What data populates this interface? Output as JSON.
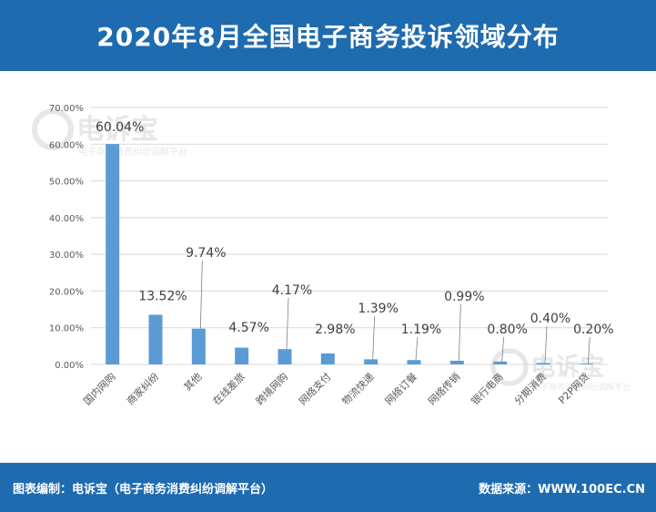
{
  "header": {
    "title": "2020年8月全国电子商务投诉领域分布"
  },
  "footer": {
    "left": "图表编制：电诉宝（电子商务消费纠纷调解平台）",
    "right": "数据来源：WWW.100EC.CN"
  },
  "watermark": {
    "name": "电诉宝",
    "subtitle": "电子商务消费纠纷调解平台"
  },
  "colors": {
    "header_bg": "#1e6bb0",
    "bar": "#5b9bd5",
    "grid": "#d9d9d9",
    "axis_text": "#595959",
    "label_text": "#404040"
  },
  "chart_data": {
    "type": "bar",
    "title": "",
    "xlabel": "",
    "ylabel": "",
    "ylim": [
      0,
      70
    ],
    "y_ticks": [
      "0.00%",
      "10.00%",
      "20.00%",
      "30.00%",
      "40.00%",
      "50.00%",
      "60.00%",
      "70.00%"
    ],
    "categories": [
      "国内网购",
      "商家纠纷",
      "其他",
      "在线差旅",
      "跨境网购",
      "网络支付",
      "物流快递",
      "网络订餐",
      "网络传销",
      "银行电商",
      "分期消费",
      "P2P网贷"
    ],
    "values": [
      60.04,
      13.52,
      9.74,
      4.57,
      4.17,
      2.98,
      1.39,
      1.19,
      0.99,
      0.8,
      0.4,
      0.2
    ],
    "data_labels": [
      "60.04%",
      "13.52%",
      "9.74%",
      "4.57%",
      "4.17%",
      "2.98%",
      "1.39%",
      "1.19%",
      "0.99%",
      "0.80%",
      "0.40%",
      "0.20%"
    ],
    "grid": true,
    "legend": "none"
  }
}
